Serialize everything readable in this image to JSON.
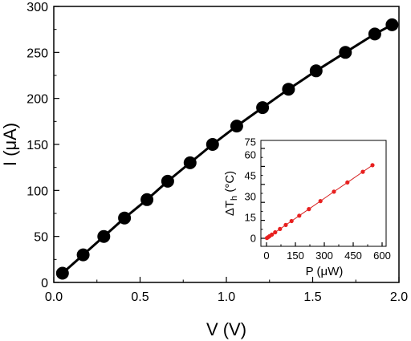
{
  "chart_data": [
    {
      "type": "line",
      "markers": true,
      "xlabel": "V (V)",
      "ylabel": "I (μA)",
      "xlim": [
        0,
        2.0
      ],
      "ylim": [
        0,
        300
      ],
      "xticks": [
        "0.0",
        "0.5",
        "1.0",
        "1.5",
        "2.0"
      ],
      "yticks": [
        "0",
        "50",
        "100",
        "150",
        "200",
        "250",
        "300"
      ],
      "grid": false,
      "legend": false,
      "colors": {
        "line": "#000000",
        "marker": "#000000"
      },
      "series": [
        {
          "x": [
            0.05,
            0.17,
            0.29,
            0.41,
            0.54,
            0.66,
            0.79,
            0.92,
            1.06,
            1.21,
            1.36,
            1.52,
            1.69,
            1.86,
            1.96
          ],
          "y": [
            10,
            30,
            50,
            70,
            90,
            110,
            130,
            150,
            170,
            190,
            210,
            230,
            250,
            270,
            280
          ]
        }
      ]
    },
    {
      "type": "line",
      "markers": true,
      "inset": true,
      "xlabel_parts": {
        "base": "P (",
        "mu": "μ",
        "rest": "W)"
      },
      "ylabel_parts": {
        "delta": "Δ",
        "t": "T",
        "sub": "h",
        "rest": " (°C)"
      },
      "xlim": [
        0,
        600
      ],
      "ylim": [
        0,
        75
      ],
      "xticks": [
        "0",
        "150",
        "300",
        "450",
        "600"
      ],
      "yticks": [
        "0",
        "15",
        "30",
        "45",
        "60",
        "75"
      ],
      "grid": false,
      "legend": false,
      "colors": {
        "line": "#d61f1f",
        "marker": "#e8201f"
      },
      "series": [
        {
          "x": [
            2,
            8,
            16,
            28,
            45,
            70,
            100,
            130,
            170,
            220,
            280,
            350,
            420,
            500,
            550
          ],
          "y": [
            0.2,
            0.9,
            1.8,
            3.1,
            5.0,
            7.8,
            11.1,
            14.4,
            18.9,
            24.4,
            31.1,
            38.9,
            46.6,
            55.5,
            61.0
          ]
        }
      ]
    }
  ]
}
